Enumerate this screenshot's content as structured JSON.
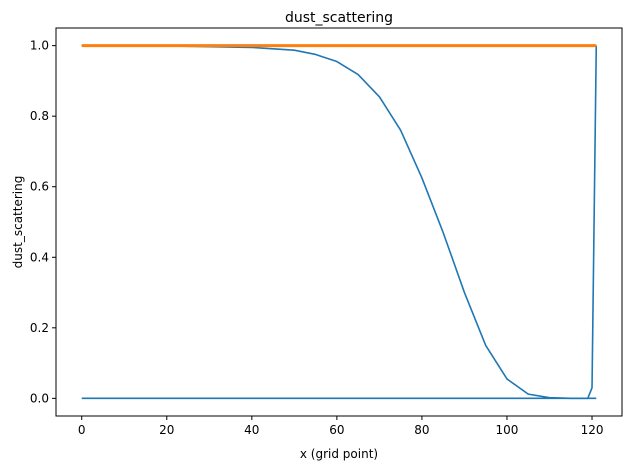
{
  "chart_data": {
    "type": "line",
    "title": "dust_scattering",
    "xlabel": "x (grid point)",
    "ylabel": "dust_scattering",
    "xlim": [
      -6.05,
      127.05
    ],
    "ylim": [
      -0.05,
      1.05
    ],
    "xticks": [
      0,
      20,
      40,
      60,
      80,
      100,
      120
    ],
    "yticks": [
      0.0,
      0.2,
      0.4,
      0.6,
      0.8,
      1.0
    ],
    "xtick_labels": [
      "0",
      "20",
      "40",
      "60",
      "80",
      "100",
      "120"
    ],
    "ytick_labels": [
      "0.0",
      "0.2",
      "0.4",
      "0.6",
      "0.8",
      "1.0"
    ],
    "grid": false,
    "series": [
      {
        "color": "#1f77b4",
        "x": [
          0,
          20,
          40,
          50,
          55,
          60,
          65,
          70,
          75,
          80,
          85,
          90,
          95,
          100,
          105,
          110,
          115,
          119,
          120,
          121
        ],
        "y": [
          1.0,
          0.999,
          0.995,
          0.987,
          0.975,
          0.955,
          0.918,
          0.855,
          0.76,
          0.625,
          0.47,
          0.3,
          0.15,
          0.055,
          0.012,
          0.002,
          0.0,
          0.0,
          0.03,
          1.0
        ]
      },
      {
        "color": "#1f77b4",
        "x": [
          0,
          121
        ],
        "y": [
          0.0,
          0.0
        ]
      },
      {
        "color": "#ff7f0e",
        "x": [
          0,
          121
        ],
        "y": [
          1.0,
          1.0
        ],
        "linewidth": 3
      }
    ]
  }
}
